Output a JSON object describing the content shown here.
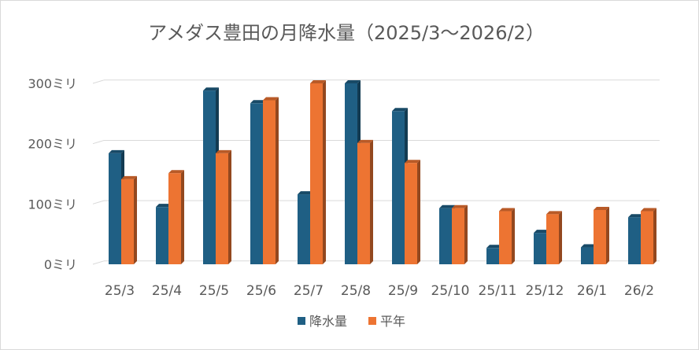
{
  "chart_data": {
    "type": "bar",
    "title": "アメダス豊田の月降水量（2025/3～2026/2）",
    "categories": [
      "25/3",
      "25/4",
      "25/5",
      "25/6",
      "25/7",
      "25/8",
      "25/9",
      "25/10",
      "25/11",
      "25/12",
      "26/1",
      "26/2"
    ],
    "series": [
      {
        "name": "降水量",
        "color": "#1f5f84",
        "values": [
          184,
          95,
          288,
          267,
          116,
          300,
          254,
          93,
          27,
          52,
          28,
          78
        ]
      },
      {
        "name": "平年",
        "color": "#ed7432",
        "values": [
          141,
          151,
          184,
          272,
          300,
          201,
          168,
          93,
          88,
          83,
          90,
          88
        ]
      }
    ],
    "y_ticks": [
      "0ミリ",
      "100ミリ",
      "200ミリ",
      "300ミリ"
    ],
    "ylim": [
      0,
      300
    ],
    "grid": true,
    "legend_position": "bottom"
  }
}
